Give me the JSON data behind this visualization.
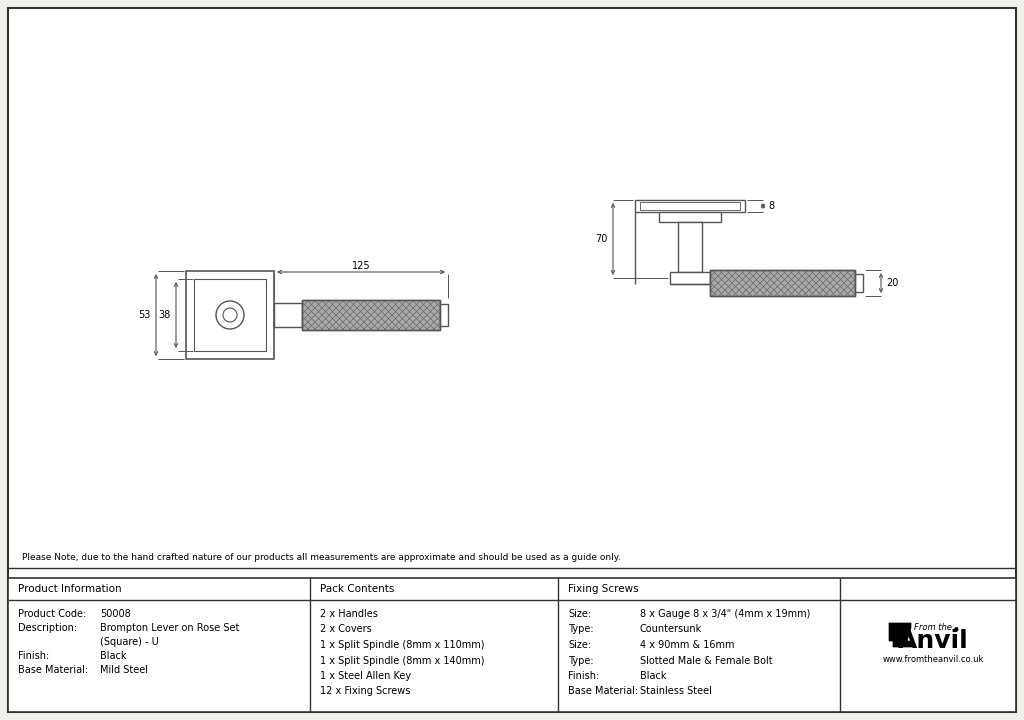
{
  "bg_color": "#f0f0eb",
  "white": "#ffffff",
  "line_color": "#555555",
  "border_color": "#333333",
  "knurl_color": "#aaaaaa",
  "knurl_line": "#666666",
  "note_text": "Please Note, due to the hand crafted nature of our products all measurements are approximate and should be used as a guide only.",
  "table_headers": [
    "Product Information",
    "Pack Contents",
    "Fixing Screws"
  ],
  "product_info": [
    [
      "Product Code:",
      "50008"
    ],
    [
      "Description:",
      "Brompton Lever on Rose Set"
    ],
    [
      "",
      "(Square) - U"
    ],
    [
      "Finish:",
      "Black"
    ],
    [
      "Base Material:",
      "Mild Steel"
    ]
  ],
  "pack_contents": [
    "2 x Handles",
    "2 x Covers",
    "1 x Split Spindle (8mm x 110mm)",
    "1 x Split Spindle (8mm x 140mm)",
    "1 x Steel Allen Key",
    "12 x Fixing Screws"
  ],
  "fixing_screws": [
    [
      "Size:",
      "8 x Gauge 8 x 3/4\" (4mm x 19mm)"
    ],
    [
      "Type:",
      "Countersunk"
    ],
    [
      "Size:",
      "4 x 90mm & 16mm"
    ],
    [
      "Type:",
      "Slotted Male & Female Bolt"
    ],
    [
      "Finish:",
      "Black"
    ],
    [
      "Base Material:",
      "Stainless Steel"
    ]
  ],
  "dim_125": "125",
  "dim_53": "53",
  "dim_38": "38",
  "dim_70": "70",
  "dim_8": "8",
  "dim_20": "20"
}
